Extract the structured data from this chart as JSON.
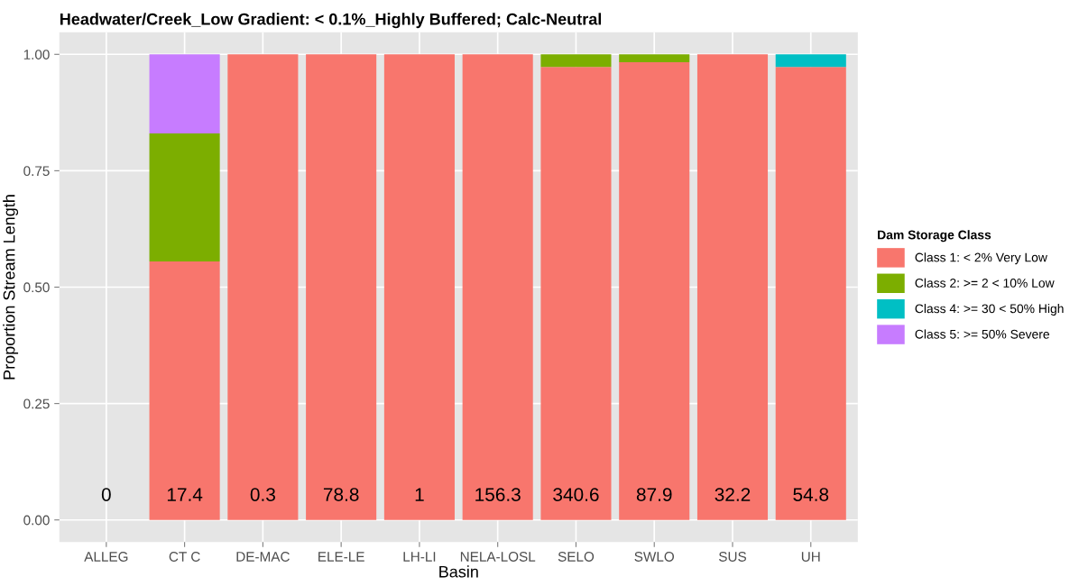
{
  "chart_data": {
    "type": "bar",
    "title": "Headwater/Creek_Low Gradient: < 0.1%_Highly Buffered; Calc-Neutral",
    "xlabel": "Basin",
    "ylabel": "Proportion Stream Length",
    "legend_title": "Dam Storage Class",
    "categories": [
      "ALLEG",
      "CT C",
      "DE-MAC",
      "ELE-LE",
      "LH-LI",
      "NELA-LOSL",
      "SELO",
      "SWLO",
      "SUS",
      "UH"
    ],
    "stacked": true,
    "series": [
      {
        "name": "Class 1: < 2% Very Low",
        "color": "#f8766d",
        "values": [
          null,
          0.555,
          1,
          1,
          1,
          1,
          0.973,
          0.983,
          1,
          0.973
        ]
      },
      {
        "name": "Class 2: >= 2 < 10% Low",
        "color": "#7cae00",
        "values": [
          null,
          0.275,
          null,
          null,
          null,
          null,
          0.027,
          0.017,
          null,
          null
        ]
      },
      {
        "name": "Class 4: >= 30 < 50% High",
        "color": "#00bfc4",
        "values": [
          null,
          null,
          null,
          null,
          null,
          null,
          null,
          null,
          null,
          0.027
        ]
      },
      {
        "name": "Class 5: >= 50% Severe",
        "color": "#c77cff",
        "values": [
          null,
          0.17,
          null,
          null,
          null,
          null,
          null,
          null,
          null,
          null
        ]
      }
    ],
    "annotations": [
      "0",
      "17.4",
      "0.3",
      "78.8",
      "1",
      "156.3",
      "340.6",
      "87.9",
      "32.2",
      "54.8"
    ],
    "ylim": [
      -0.0475,
      1.0475
    ],
    "yticks": [
      {
        "value": 0,
        "label": "0.00"
      },
      {
        "value": 0.25,
        "label": "0.25"
      },
      {
        "value": 0.5,
        "label": "0.50"
      },
      {
        "value": 0.75,
        "label": "0.75"
      },
      {
        "value": 1,
        "label": "1.00"
      }
    ],
    "grid": true,
    "legend": "right"
  }
}
